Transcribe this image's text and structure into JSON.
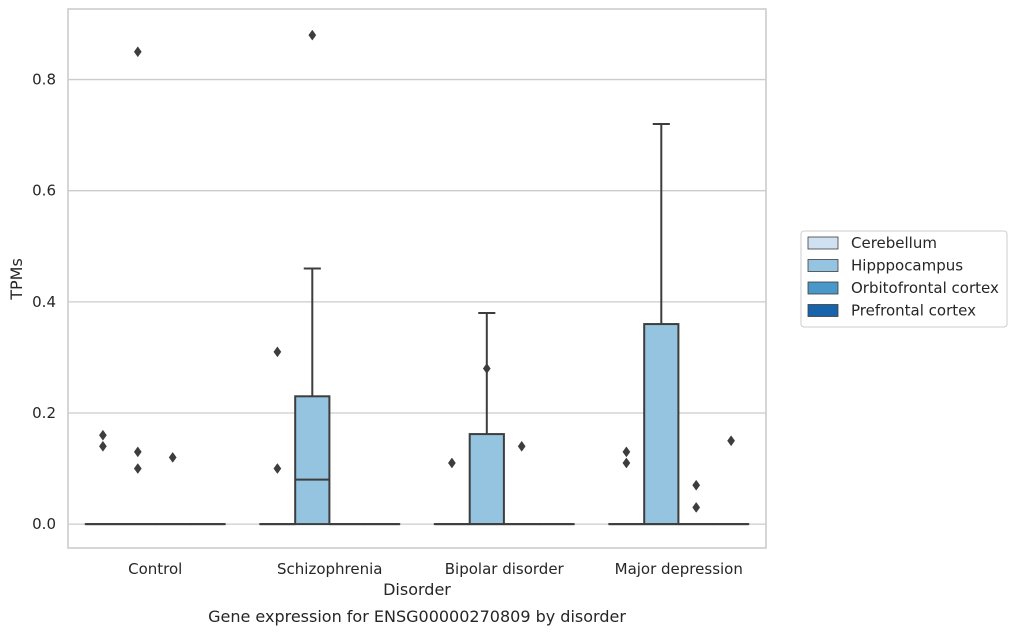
{
  "chart_data": {
    "type": "box",
    "xlabel": "Disorder",
    "ylabel": "TPMs",
    "caption": "Gene expression for ENSG00000270809 by disorder",
    "categories": [
      "Control",
      "Schizophrenia",
      "Bipolar disorder",
      "Major depression"
    ],
    "hue_order": [
      "Cerebellum",
      "Hipppocampus",
      "Orbitofrontal cortex",
      "Prefrontal cortex"
    ],
    "ylim": [
      -0.043,
      0.927
    ],
    "yticks": [
      0.0,
      0.2,
      0.4,
      0.6,
      0.8
    ],
    "ytick_labels": [
      "0.0",
      "0.2",
      "0.4",
      "0.6",
      "0.8"
    ],
    "grid": "horizontal",
    "legend_position": "right",
    "colors": {
      "Cerebellum": "#d0e1f2",
      "Hipppocampus": "#94c4df",
      "Orbitofrontal cortex": "#4a98c9",
      "Prefrontal cortex": "#1764ab",
      "edge": "#3d3d3d",
      "grid": "#cccccc",
      "spine": "#cccccc"
    },
    "boxes": [
      {
        "category": "Control",
        "group": "Cerebellum",
        "q1": 0,
        "median": 0,
        "q3": 0,
        "whislo": 0,
        "whishi": 0,
        "fliers": [
          0.16,
          0.14
        ]
      },
      {
        "category": "Control",
        "group": "Hipppocampus",
        "q1": 0,
        "median": 0,
        "q3": 0,
        "whislo": 0,
        "whishi": 0,
        "fliers": [
          0.85,
          0.13,
          0.1
        ]
      },
      {
        "category": "Control",
        "group": "Orbitofrontal cortex",
        "q1": 0,
        "median": 0,
        "q3": 0,
        "whislo": 0,
        "whishi": 0,
        "fliers": [
          0.12
        ]
      },
      {
        "category": "Control",
        "group": "Prefrontal cortex",
        "q1": 0,
        "median": 0,
        "q3": 0,
        "whislo": 0,
        "whishi": 0,
        "fliers": []
      },
      {
        "category": "Schizophrenia",
        "group": "Cerebellum",
        "q1": 0,
        "median": 0,
        "q3": 0,
        "whislo": 0,
        "whishi": 0,
        "fliers": [
          0.31,
          0.1
        ]
      },
      {
        "category": "Schizophrenia",
        "group": "Hipppocampus",
        "q1": 0,
        "median": 0.08,
        "q3": 0.23,
        "whislo": 0,
        "whishi": 0.46,
        "fliers": [
          0.88
        ]
      },
      {
        "category": "Schizophrenia",
        "group": "Orbitofrontal cortex",
        "q1": 0,
        "median": 0,
        "q3": 0,
        "whislo": 0,
        "whishi": 0,
        "fliers": []
      },
      {
        "category": "Schizophrenia",
        "group": "Prefrontal cortex",
        "q1": 0,
        "median": 0,
        "q3": 0,
        "whislo": 0,
        "whishi": 0,
        "fliers": []
      },
      {
        "category": "Bipolar disorder",
        "group": "Cerebellum",
        "q1": 0,
        "median": 0,
        "q3": 0,
        "whislo": 0,
        "whishi": 0,
        "fliers": [
          0.11
        ]
      },
      {
        "category": "Bipolar disorder",
        "group": "Hipppocampus",
        "q1": 0,
        "median": 0,
        "q3": 0.162,
        "whislo": 0,
        "whishi": 0.38,
        "fliers": [
          0.28
        ]
      },
      {
        "category": "Bipolar disorder",
        "group": "Orbitofrontal cortex",
        "q1": 0,
        "median": 0,
        "q3": 0,
        "whislo": 0,
        "whishi": 0,
        "fliers": [
          0.14
        ]
      },
      {
        "category": "Bipolar disorder",
        "group": "Prefrontal cortex",
        "q1": 0,
        "median": 0,
        "q3": 0,
        "whislo": 0,
        "whishi": 0,
        "fliers": []
      },
      {
        "category": "Major depression",
        "group": "Cerebellum",
        "q1": 0,
        "median": 0,
        "q3": 0,
        "whislo": 0,
        "whishi": 0,
        "fliers": [
          0.13,
          0.11
        ]
      },
      {
        "category": "Major depression",
        "group": "Hipppocampus",
        "q1": 0,
        "median": 0,
        "q3": 0.36,
        "whislo": 0,
        "whishi": 0.72,
        "fliers": []
      },
      {
        "category": "Major depression",
        "group": "Orbitofrontal cortex",
        "q1": 0,
        "median": 0,
        "q3": 0,
        "whislo": 0,
        "whishi": 0,
        "fliers": [
          0.07,
          0.03
        ]
      },
      {
        "category": "Major depression",
        "group": "Prefrontal cortex",
        "q1": 0,
        "median": 0,
        "q3": 0,
        "whislo": 0,
        "whishi": 0,
        "fliers": [
          0.15
        ]
      }
    ]
  }
}
